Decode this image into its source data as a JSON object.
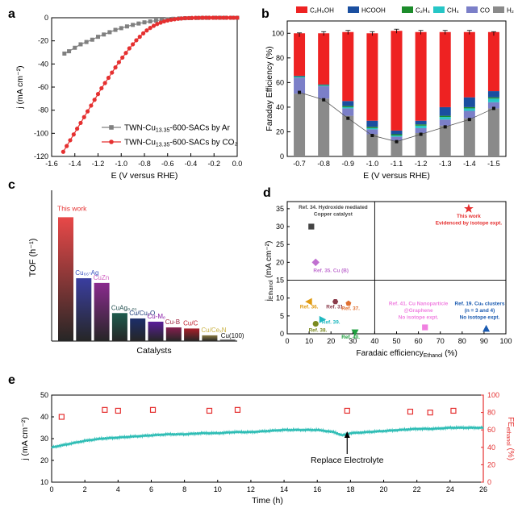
{
  "colors": {
    "ethanol": "#ee2222",
    "hcooh": "#1a4fa0",
    "c2h4": "#1c8c2b",
    "ch4": "#26c6c6",
    "co": "#7b7fc8",
    "h2": "#8a8a8a",
    "ar": "#808080",
    "co2": "#e53030",
    "teal": "#2bbcb4",
    "fe_marker": "#e53030"
  },
  "chart_data": [
    {
      "panel": "a",
      "type": "line",
      "xlabel": "E (V versus RHE)",
      "ylabel": "j (mA cm⁻²)",
      "xlim": [
        -1.6,
        0.0
      ],
      "ylim": [
        -120,
        0
      ],
      "xticks": [
        "-1.6",
        "-1.4",
        "-1.2",
        "-1.0",
        "-0.8",
        "-0.6",
        "-0.4",
        "-0.2",
        "0.0"
      ],
      "yticks": [
        "-120",
        "-100",
        "-80",
        "-60",
        "-40",
        "-20",
        "0"
      ],
      "series": [
        {
          "name": "TWN-Cu13.35-600-SACs by Ar",
          "legend_main": "TWN-Cu",
          "legend_sub": "13.35",
          "legend_rest": "-600-SACs by Ar",
          "marker": "square",
          "color": "#808080",
          "x": [
            -1.49,
            -1.45,
            -1.4,
            -1.35,
            -1.3,
            -1.25,
            -1.2,
            -1.15,
            -1.1,
            -1.05,
            -1.0,
            -0.95,
            -0.9,
            -0.85,
            -0.8,
            -0.75,
            -0.7,
            -0.65,
            -0.6,
            -0.55,
            -0.5,
            -0.45,
            -0.4,
            -0.35,
            -0.3,
            -0.25,
            -0.2,
            -0.15,
            -0.1,
            -0.05,
            0.0
          ],
          "y": [
            -31,
            -29,
            -26,
            -23,
            -21,
            -19,
            -16.5,
            -14.5,
            -12.5,
            -10.5,
            -9,
            -7.5,
            -6.2,
            -5,
            -4,
            -3.2,
            -2.5,
            -1.8,
            -1.3,
            -0.9,
            -0.6,
            -0.4,
            -0.3,
            -0.2,
            -0.1,
            -0.1,
            0,
            0,
            0,
            0,
            0
          ]
        },
        {
          "name": "TWN-Cu13.35-600-SACs by CO2",
          "legend_main": "TWN-Cu",
          "legend_sub": "13.35",
          "legend_rest": "-600-SACs by CO₂",
          "marker": "circle",
          "color": "#e53030",
          "x": [
            -1.5,
            -1.47,
            -1.44,
            -1.41,
            -1.38,
            -1.35,
            -1.32,
            -1.29,
            -1.26,
            -1.23,
            -1.2,
            -1.17,
            -1.14,
            -1.11,
            -1.08,
            -1.05,
            -1.02,
            -0.99,
            -0.96,
            -0.93,
            -0.9,
            -0.87,
            -0.84,
            -0.81,
            -0.78,
            -0.75,
            -0.72,
            -0.69,
            -0.66,
            -0.63,
            -0.6,
            -0.57,
            -0.54,
            -0.51,
            -0.48,
            -0.45,
            -0.42,
            -0.39,
            -0.36,
            -0.33,
            -0.3,
            -0.27,
            -0.24,
            -0.21,
            -0.18,
            -0.15,
            -0.12,
            -0.09,
            -0.06,
            -0.03,
            0.0
          ],
          "y": [
            -116,
            -111,
            -106,
            -101,
            -96,
            -91,
            -86,
            -81,
            -76,
            -71,
            -66,
            -61,
            -56.5,
            -52,
            -47.5,
            -43,
            -38.5,
            -34.5,
            -30.5,
            -26.5,
            -23,
            -19.5,
            -16.5,
            -13.5,
            -11,
            -8.8,
            -7,
            -5.4,
            -4.2,
            -3.2,
            -2.4,
            -1.8,
            -1.3,
            -0.9,
            -0.6,
            -0.4,
            -0.3,
            -0.2,
            -0.1,
            -0.1,
            0,
            0,
            0,
            0,
            0,
            0,
            0,
            0,
            0,
            0,
            0
          ]
        }
      ]
    },
    {
      "panel": "b",
      "type": "bar",
      "xlabel": "E (V versus RHE)",
      "ylabel": "Faraday Efficiency (%)",
      "ylim": [
        0,
        110
      ],
      "yticks": [
        "0",
        "20",
        "40",
        "60",
        "80",
        "100"
      ],
      "categories": [
        "-0.7",
        "-0.8",
        "-0.9",
        "-1.0",
        "-1.1",
        "-1.2",
        "-1.3",
        "-1.4",
        "-1.5"
      ],
      "legend": [
        {
          "label": "C₂H₅OH",
          "color": "#ee2222"
        },
        {
          "label": "HCOOH",
          "color": "#1a4fa0"
        },
        {
          "label": "C₂H₄",
          "color": "#1c8c2b"
        },
        {
          "label": "CH₄",
          "color": "#26c6c6"
        },
        {
          "label": "CO",
          "color": "#7b7fc8"
        },
        {
          "label": "H₂",
          "color": "#8a8a8a"
        }
      ],
      "series": [
        {
          "name": "H2",
          "color": "#8a8a8a",
          "values": [
            51,
            47,
            33,
            18,
            13,
            19,
            25,
            31,
            39
          ]
        },
        {
          "name": "CO",
          "color": "#7b7fc8",
          "values": [
            13,
            10,
            6,
            4,
            3,
            4,
            5,
            6,
            5
          ]
        },
        {
          "name": "CH4",
          "color": "#26c6c6",
          "values": [
            0.5,
            0.5,
            1,
            1,
            1,
            2,
            2,
            2,
            3
          ]
        },
        {
          "name": "C2H4",
          "color": "#1c8c2b",
          "values": [
            0.5,
            0.5,
            1,
            1,
            1,
            1,
            1,
            1,
            1
          ]
        },
        {
          "name": "HCOOH",
          "color": "#1a4fa0",
          "values": [
            0.5,
            0.5,
            4,
            5,
            3,
            3,
            7,
            8,
            5
          ]
        },
        {
          "name": "C2H5OH",
          "color": "#ee2222",
          "values": [
            34.5,
            41.5,
            56,
            71,
            81,
            72,
            61,
            53,
            48
          ]
        }
      ],
      "error_tops": [
        99,
        100,
        101,
        100,
        102,
        101,
        101,
        101,
        100
      ],
      "h2_points": [
        52,
        46,
        31,
        17,
        12,
        18,
        24,
        30,
        39
      ]
    },
    {
      "panel": "c",
      "type": "bar",
      "xlabel": "Catalysts",
      "ylabel": "TOF (h⁻¹)",
      "categories": [
        "This work",
        "Cu₆₆-Ag",
        "CuZn",
        "CuAg₀.₀₁",
        "Cu/Cu₂O",
        "Cu-Mₑ",
        "Cu-B",
        "Cu/C",
        "Cu/CeₓN",
        "Cu(100)"
      ],
      "values": [
        3.45,
        1.75,
        1.62,
        0.78,
        0.63,
        0.54,
        0.38,
        0.35,
        0.16,
        0.05
      ],
      "label_colors": [
        "#e53030",
        "#3a52c0",
        "#d060c0",
        "#1c4a4a",
        "#1c3a7a",
        "#8a1ca8",
        "#9a1c3a",
        "#c01c2a",
        "#c8b040",
        "#111111"
      ],
      "bar_colors": [
        "#e84848",
        "#3a3ea0",
        "#8a2a8e",
        "#1e5c4e",
        "#1c2e6a",
        "#5a1e9a",
        "#861e4e",
        "#aa1e2a",
        "#8a7a40",
        "#a8a8a8"
      ]
    },
    {
      "panel": "d",
      "type": "scatter",
      "xlabel": "Faradaic efficiency",
      "xlabel_sub": "Ethanol",
      "xlabel_unit": " (%)",
      "ylabel": "j",
      "ylabel_sub": "Ethanol",
      "ylabel_unit": " (mA cm⁻²)",
      "xlim": [
        0,
        100
      ],
      "ylim": [
        0,
        37
      ],
      "xticks": [
        "0",
        "10",
        "20",
        "30",
        "40",
        "50",
        "60",
        "70",
        "80",
        "90",
        "100"
      ],
      "yticks": [
        "0",
        "5",
        "10",
        "15",
        "20",
        "25",
        "30",
        "35"
      ],
      "divider_x": 40,
      "divider_y": 15,
      "points": [
        {
          "x": 83,
          "y": 35,
          "marker": "star",
          "color": "#e53030"
        },
        {
          "x": 11,
          "y": 30,
          "marker": "square",
          "color": "#444444"
        },
        {
          "x": 13,
          "y": 20,
          "marker": "diamond",
          "color": "#c070d0"
        },
        {
          "x": 10,
          "y": 9,
          "marker": "triangle-left",
          "color": "#e09a10"
        },
        {
          "x": 22,
          "y": 9,
          "marker": "hexagon",
          "color": "#8a3a4a"
        },
        {
          "x": 28,
          "y": 8.5,
          "marker": "pentagon",
          "color": "#e07030"
        },
        {
          "x": 16,
          "y": 4,
          "marker": "triangle-right",
          "color": "#20b8c0"
        },
        {
          "x": 13,
          "y": 2.8,
          "marker": "circle",
          "color": "#7a8a20"
        },
        {
          "x": 31,
          "y": 0.4,
          "marker": "triangle-down",
          "color": "#20a040"
        },
        {
          "x": 63,
          "y": 1.8,
          "marker": "square",
          "color": "#f080e0"
        },
        {
          "x": 91,
          "y": 1.4,
          "marker": "triangle-up",
          "color": "#1a5ab0"
        }
      ],
      "annotations": [
        {
          "lines": [
            "This work",
            "Evidenced by isotope expt."
          ],
          "color": "#e53030",
          "x": 83,
          "y": 32.5
        },
        {
          "lines": [
            "Ref. 34. Hydroxide mediated",
            "Copper catalyst"
          ],
          "color": "#444444",
          "x": 21,
          "y": 35
        },
        {
          "lines": [
            "Ref. 35. Cu (B)"
          ],
          "color": "#c070d0",
          "x": 20,
          "y": 17.3
        },
        {
          "lines": [
            "Ref. 36."
          ],
          "color": "#e09a10",
          "x": 10,
          "y": 7.1
        },
        {
          "lines": [
            "Ref. 31."
          ],
          "color": "#8a3a4a",
          "x": 22,
          "y": 7.1
        },
        {
          "lines": [
            "Ref. 37."
          ],
          "color": "#e07030",
          "x": 29,
          "y": 6.6
        },
        {
          "lines": [
            "Ref. 39."
          ],
          "color": "#20b8c0",
          "x": 20,
          "y": 2.8
        },
        {
          "lines": [
            "Ref. 38."
          ],
          "color": "#7a8a20",
          "x": 14,
          "y": 0.6
        },
        {
          "lines": [
            "Ref. 40."
          ],
          "color": "#20a040",
          "x": 29,
          "y": -1.4
        },
        {
          "lines": [
            "Ref. 41. Cu Nanoparticle",
            "@Graphene",
            "No isotope expt."
          ],
          "color": "#f080e0",
          "x": 60,
          "y": 8
        },
        {
          "lines": [
            "Ref. 19. Cuₙ clusters",
            "(n = 3 and 4)",
            "No isotope expt."
          ],
          "color": "#1a5ab0",
          "x": 88,
          "y": 8
        }
      ]
    },
    {
      "panel": "e",
      "type": "line",
      "xlabel": "Time (h)",
      "ylabel": "j (mA cm⁻²)",
      "ylabel_right": "FE",
      "ylabel_right_sub": "ethanol",
      "ylabel_right_unit": " (%)",
      "xlim": [
        0,
        26
      ],
      "ylim": [
        10,
        50
      ],
      "ylim_right": [
        0,
        100
      ],
      "xticks": [
        "0",
        "2",
        "4",
        "6",
        "8",
        "10",
        "12",
        "14",
        "16",
        "18",
        "20",
        "22",
        "24",
        "26"
      ],
      "yticks": [
        "10",
        "20",
        "30",
        "40",
        "50"
      ],
      "yticks_right": [
        "0",
        "20",
        "40",
        "60",
        "80",
        "100"
      ],
      "series": [
        {
          "name": "j",
          "color": "#2bbcb4",
          "x": [
            0,
            1,
            2,
            3,
            4,
            5,
            6,
            7,
            8,
            9,
            10,
            11,
            12,
            13,
            14,
            15,
            16,
            17,
            17.5,
            18,
            19,
            20,
            21,
            22,
            23,
            24,
            25,
            26
          ],
          "y": [
            26,
            27.5,
            29,
            30,
            30.5,
            31,
            31.5,
            32,
            32,
            32.5,
            32.5,
            33,
            33,
            33.5,
            34,
            34,
            34,
            33,
            31.5,
            32.5,
            33,
            33.5,
            34,
            34.5,
            34.5,
            35,
            35,
            35
          ]
        },
        {
          "name": "FE_ethanol",
          "color": "#e53030",
          "marker": "open-square",
          "x": [
            0.6,
            3.2,
            4.0,
            6.1,
            9.5,
            11.2,
            17.8,
            21.6,
            22.8,
            24.2
          ],
          "y": [
            75,
            83,
            82,
            83,
            82,
            83,
            82,
            81,
            80,
            82
          ]
        }
      ],
      "annotation": "Replace Electrolyte",
      "annotation_x": 17.8
    }
  ],
  "panel_labels": [
    "a",
    "b",
    "c",
    "d",
    "e"
  ]
}
